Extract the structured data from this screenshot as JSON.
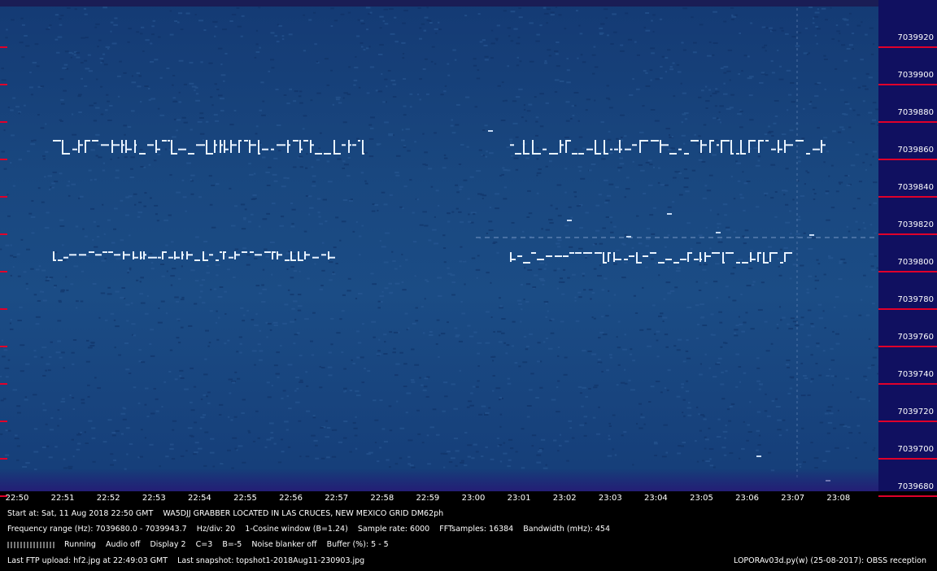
{
  "frequency_scale": {
    "labels": [
      "7039920",
      "7039900",
      "7039880",
      "7039860",
      "7039840",
      "7039820",
      "7039800",
      "7039780",
      "7039760",
      "7039740",
      "7039720",
      "7039700",
      "7039680"
    ],
    "tick_color": "#e0002a"
  },
  "time_axis": {
    "labels": [
      "22:50",
      "22:51",
      "22:52",
      "22:53",
      "22:54",
      "22:55",
      "22:56",
      "22:57",
      "22:58",
      "22:59",
      "23:00",
      "23:01",
      "23:02",
      "23:03",
      "23:04",
      "23:05",
      "23:06",
      "23:07",
      "23:08"
    ]
  },
  "info": {
    "start_line": "Start at: Sat, 11 Aug 2018 22:50 GMT    WA5DJJ GRABBER LOCATED IN LAS CRUCES, NEW MEXICO GRID DM62ph",
    "freq_line": "Frequency range (Hz): 7039680.0 - 7039943.7    Hz/div: 20    1-Cosine window (B=1.24)    Sample rate: 6000    FFTsamples: 16384    Bandwidth (mHz): 454",
    "status_line": "Running    Audio off    Display 2    C=3    B=-5    Noise blanker off    Buffer (%): 5 - 5",
    "ftp_line": "Last FTP upload: hf2.jpg at 22:49:03 GMT    Last snapshot: topshot1-2018Aug11-230903.jpg",
    "version_line": "LOPORAv03d.py(w) (25-08-2017): OBSS reception"
  },
  "colors": {
    "background": "#000000",
    "spectrum_base": "#19477f",
    "scale_background": "#101060",
    "signal": "#e8f2ff"
  }
}
